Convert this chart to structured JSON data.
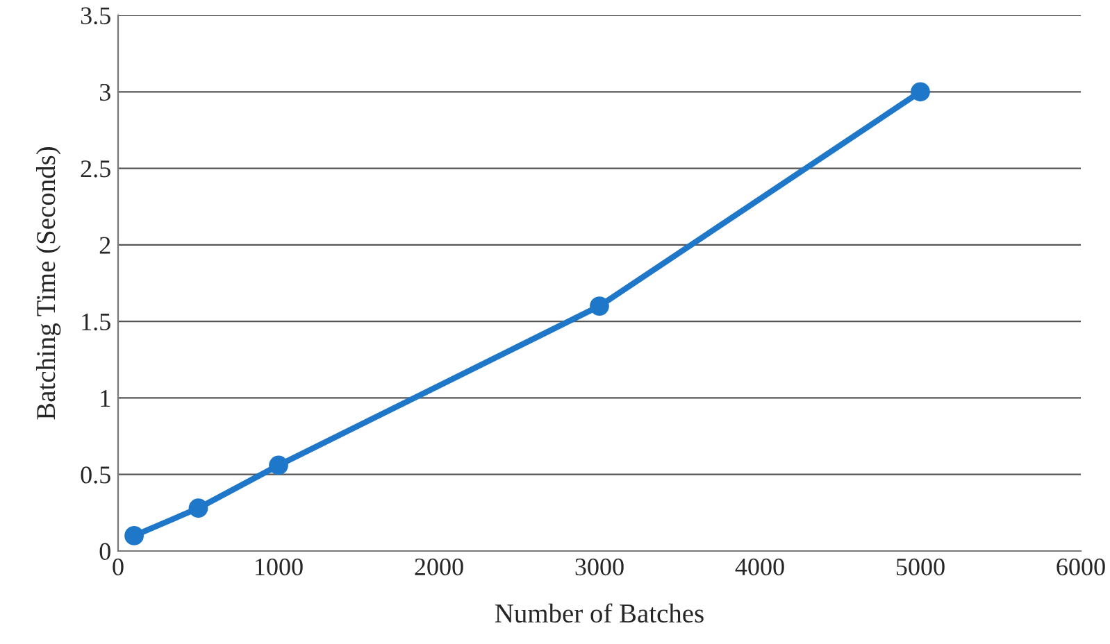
{
  "chart_data": {
    "type": "line",
    "xlabel": "Number of Batches",
    "ylabel": "Batching Time (Seconds)",
    "x": [
      100,
      500,
      1000,
      3000,
      5000
    ],
    "series": [
      {
        "color": "#1f77c9",
        "values": [
          0.1,
          0.28,
          0.56,
          1.6,
          3.0
        ]
      }
    ],
    "xlim": [
      0,
      6000
    ],
    "xticks": [
      0,
      1000,
      2000,
      3000,
      4000,
      5000,
      6000
    ],
    "ylim": [
      0,
      3.5
    ],
    "yticks": [
      0,
      0.5,
      1,
      1.5,
      2,
      2.5,
      3,
      3.5
    ],
    "grid": "y",
    "marker": "circle",
    "line_style": "solid"
  }
}
